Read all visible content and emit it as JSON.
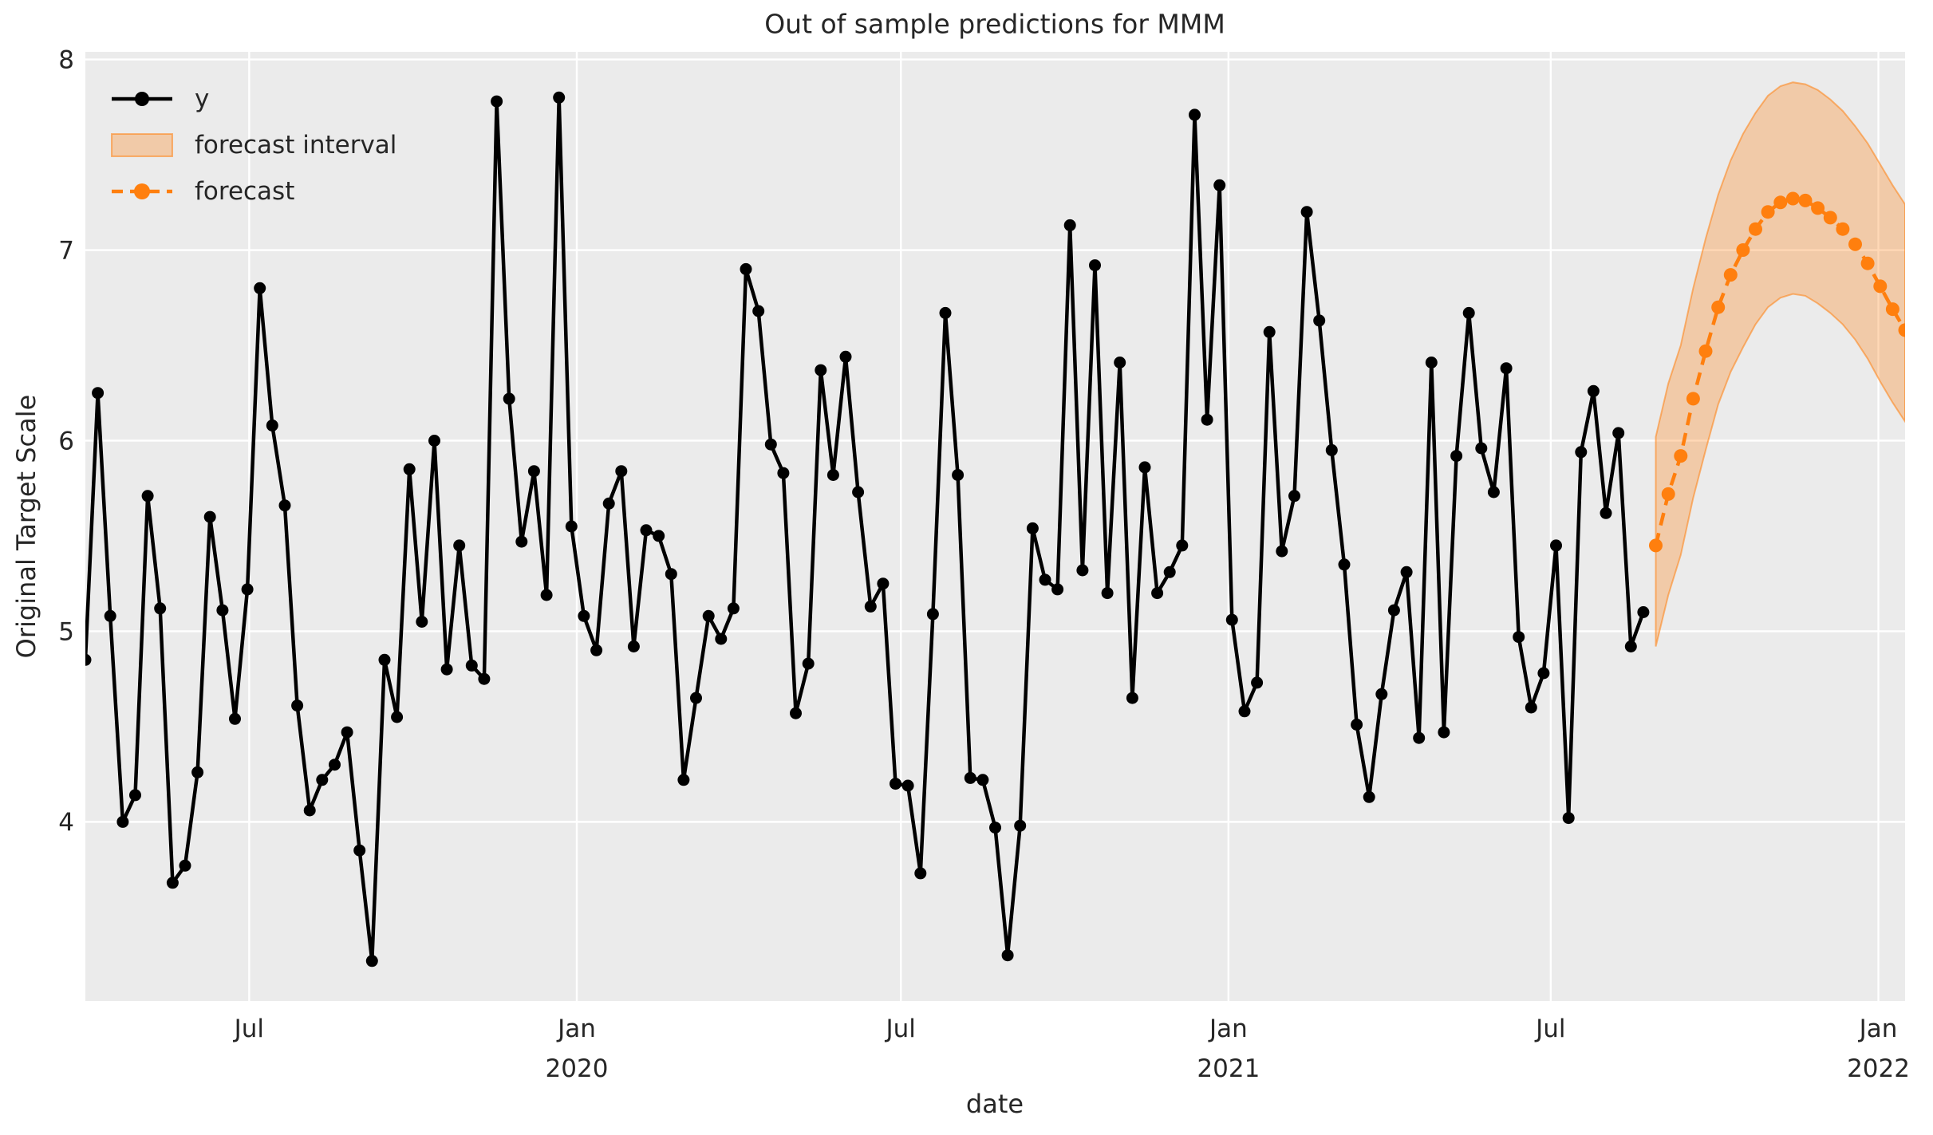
{
  "title": "Out of sample predictions for MMM",
  "axes": {
    "xlabel": "date",
    "ylabel": "Original Target Scale"
  },
  "legend": {
    "items": [
      {
        "label": "y",
        "type": "solid-line-marker"
      },
      {
        "label": "forecast interval",
        "type": "filled-patch"
      },
      {
        "label": "forecast",
        "type": "dashed-line-marker"
      }
    ]
  },
  "colors": {
    "figure_background": "#ffffff",
    "panel_background": "#ebebeb",
    "gridline": "#ffffff",
    "text": "#262626",
    "observed_series": "#000000",
    "forecast_series": "#ff7f0e",
    "forecast_band_fill": "rgba(255,127,14,0.30)",
    "forecast_band_edge": "rgba(255,127,14,0.55)"
  },
  "chart_data": {
    "type": "line",
    "title": "Out of sample predictions for MMM",
    "xlabel": "date",
    "ylabel": "Original Target Scale",
    "ylim": [
      3.06,
      8.04
    ],
    "grid": true,
    "legend_position": "upper left",
    "x_start": "2019-03-31",
    "x_end": "2022-01-16",
    "freq": "W",
    "y_ticks": [
      8,
      7,
      6,
      5,
      4
    ],
    "x_ticks": [
      {
        "date": "2019-07-01",
        "label": "Jul"
      },
      {
        "date": "2020-01-01",
        "label": "Jan",
        "year": "2020"
      },
      {
        "date": "2020-07-01",
        "label": "Jul"
      },
      {
        "date": "2021-01-01",
        "label": "Jan",
        "year": "2021"
      },
      {
        "date": "2021-07-01",
        "label": "Jul"
      },
      {
        "date": "2022-01-01",
        "label": "Jan",
        "year": "2022"
      }
    ],
    "series": [
      {
        "name": "y",
        "style": "solid",
        "marker": "circle",
        "color": "#000000",
        "start": "2019-03-31",
        "values": [
          4.85,
          6.25,
          5.08,
          4.0,
          4.14,
          5.71,
          5.12,
          3.68,
          3.77,
          4.26,
          5.6,
          5.11,
          4.54,
          5.22,
          6.8,
          6.08,
          5.66,
          4.61,
          4.06,
          4.22,
          4.3,
          4.47,
          3.85,
          3.27,
          4.85,
          4.55,
          5.85,
          5.05,
          6.0,
          4.8,
          5.45,
          4.82,
          4.75,
          7.78,
          6.22,
          5.47,
          5.84,
          5.19,
          7.8,
          5.55,
          5.08,
          4.9,
          5.67,
          5.84,
          4.92,
          5.53,
          5.5,
          5.3,
          4.22,
          4.65,
          5.08,
          4.96,
          5.12,
          6.9,
          6.68,
          5.98,
          5.83,
          4.57,
          4.83,
          6.37,
          5.82,
          6.44,
          5.73,
          5.13,
          5.25,
          4.2,
          4.19,
          3.73,
          5.09,
          6.67,
          5.82,
          4.23,
          4.22,
          3.97,
          3.3,
          3.98,
          5.54,
          5.27,
          5.22,
          7.13,
          5.32,
          6.92,
          5.2,
          6.41,
          4.65,
          5.86,
          5.2,
          5.31,
          5.45,
          7.71,
          6.11,
          7.34,
          5.06,
          4.58,
          4.73,
          6.57,
          5.42,
          5.71,
          7.2,
          6.63,
          5.95,
          5.35,
          4.51,
          4.13,
          4.67,
          5.11,
          5.31,
          4.44,
          6.41,
          4.47,
          5.92,
          6.67,
          5.96,
          5.73,
          6.38,
          4.97,
          4.6,
          4.78,
          5.45,
          4.02,
          5.94,
          6.26,
          5.62,
          6.04,
          4.92,
          5.1
        ]
      },
      {
        "name": "forecast",
        "style": "dashed",
        "marker": "circle",
        "color": "#ff7f0e",
        "start": "2021-08-29",
        "values": [
          5.45,
          5.72,
          5.92,
          6.22,
          6.47,
          6.7,
          6.87,
          7.0,
          7.11,
          7.2,
          7.25,
          7.27,
          7.26,
          7.22,
          7.17,
          7.11,
          7.03,
          6.93,
          6.81,
          6.69,
          6.58
        ]
      }
    ],
    "band": {
      "name": "forecast interval",
      "start": "2021-08-29",
      "lower": [
        4.92,
        5.19,
        5.4,
        5.7,
        5.95,
        6.19,
        6.36,
        6.49,
        6.61,
        6.7,
        6.75,
        6.77,
        6.76,
        6.72,
        6.67,
        6.61,
        6.53,
        6.43,
        6.31,
        6.2,
        6.1
      ],
      "upper": [
        6.02,
        6.3,
        6.5,
        6.8,
        7.06,
        7.29,
        7.47,
        7.61,
        7.72,
        7.81,
        7.86,
        7.88,
        7.87,
        7.84,
        7.79,
        7.73,
        7.65,
        7.56,
        7.45,
        7.34,
        7.24
      ]
    }
  }
}
